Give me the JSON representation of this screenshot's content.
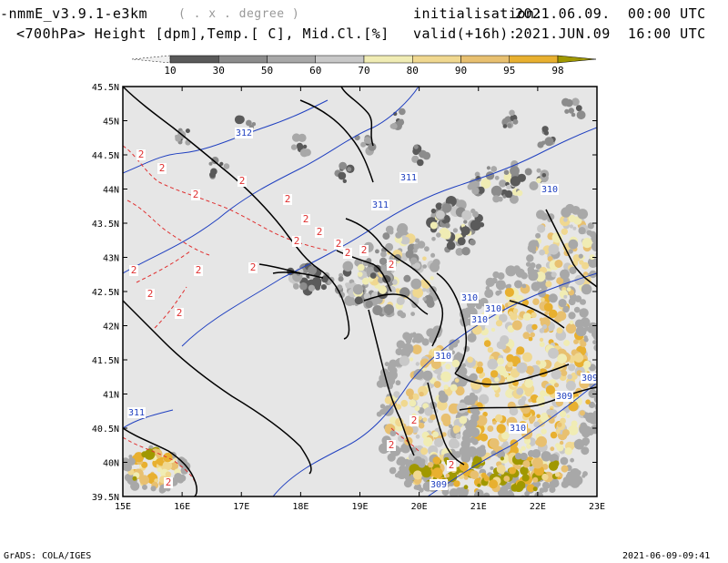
{
  "header": {
    "model": "-nmmE_v3.9.1-e3km",
    "model_sub": "( . x . degree )",
    "variables": "<700hPa> Height [dpm],Temp.[ C], Mid.Cl.[%]",
    "init_label": "initialisation:",
    "init_value": "2021.06.09.  00:00 UTC",
    "valid_label": "valid(+16h):",
    "valid_value": "2021.JUN.09  16:00 UTC"
  },
  "colorbar": {
    "labels": [
      "10",
      "30",
      "50",
      "60",
      "70",
      "80",
      "90",
      "95",
      "98"
    ],
    "colors": [
      "#f0f0f0",
      "#5a5a5a",
      "#8c8c8c",
      "#a8a8a8",
      "#c8c8c8",
      "#f0ecb4",
      "#f0d890",
      "#e8c070",
      "#e8b030",
      "#a09800"
    ]
  },
  "map": {
    "lat_labels": [
      "45.5N",
      "45N",
      "44.5N",
      "44N",
      "43.5N",
      "43N",
      "42.5N",
      "42N",
      "41.5N",
      "41N",
      "40.5N",
      "40N",
      "39.5N"
    ],
    "lon_labels": [
      "15E",
      "16E",
      "17E",
      "18E",
      "19E",
      "20E",
      "21E",
      "22E",
      "23E"
    ],
    "height_labels": [
      "312",
      "311",
      "311",
      "310",
      "310",
      "310",
      "310",
      "310",
      "310",
      "309",
      "309",
      "309",
      "311"
    ],
    "temp_labels": [
      "2",
      "2",
      "2",
      "2",
      "2",
      "2",
      "2",
      "2",
      "2",
      "2",
      "2",
      "2",
      "2",
      "2",
      "2",
      "2",
      "2",
      "2",
      "2",
      "2",
      "2"
    ],
    "colors": {
      "land": "#e6e6e6",
      "height": "#2040c0",
      "temp": "#e03030",
      "border": "#000000"
    }
  },
  "footer": {
    "left": "GrADS: COLA/IGES",
    "right": "2021-06-09-09:41"
  }
}
